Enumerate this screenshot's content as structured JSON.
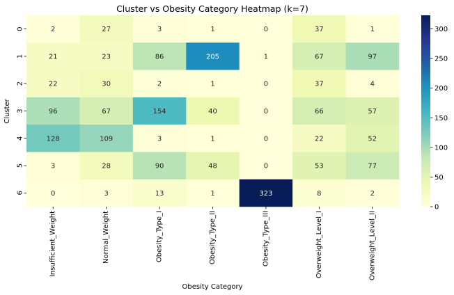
{
  "chart_data": {
    "type": "heatmap",
    "title": "Cluster vs Obesity Category Heatmap (k=7)",
    "xlabel": "Obesity Category",
    "ylabel": "Cluster",
    "x_categories": [
      "Insufficient_Weight",
      "Normal_Weight",
      "Obesity_Type_I",
      "Obesity_Type_II",
      "Obesity_Type_III",
      "Overweight_Level_I",
      "Overweight_Level_II"
    ],
    "y_categories": [
      "0",
      "1",
      "2",
      "3",
      "4",
      "5",
      "6"
    ],
    "values": [
      [
        2,
        27,
        3,
        1,
        0,
        37,
        1
      ],
      [
        21,
        23,
        86,
        205,
        1,
        67,
        97
      ],
      [
        22,
        30,
        2,
        1,
        0,
        37,
        4
      ],
      [
        96,
        67,
        154,
        40,
        0,
        66,
        57
      ],
      [
        128,
        109,
        3,
        1,
        0,
        22,
        52
      ],
      [
        3,
        28,
        90,
        48,
        0,
        53,
        77
      ],
      [
        0,
        3,
        13,
        1,
        323,
        8,
        2
      ]
    ],
    "colormap": "YlGnBu",
    "colorbar_range": [
      0,
      323
    ],
    "colorbar_ticks": [
      0,
      50,
      100,
      150,
      200,
      250,
      300
    ]
  }
}
